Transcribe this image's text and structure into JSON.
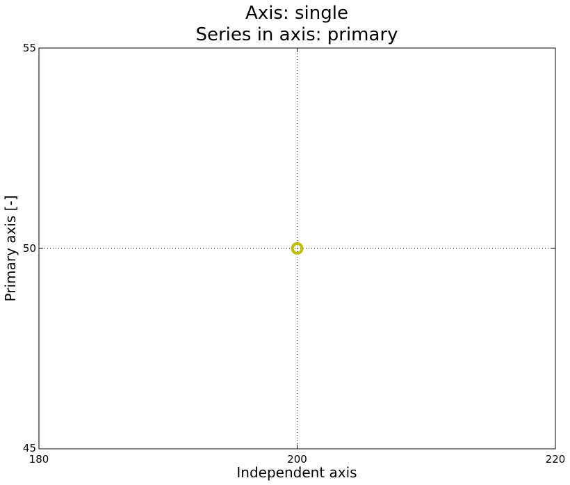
{
  "chart_data": {
    "type": "scatter",
    "title": [
      "Axis: single",
      "Series in axis: primary"
    ],
    "xlabel": "Independent axis",
    "ylabel": "Primary axis [-]",
    "xlim": [
      180,
      220
    ],
    "ylim": [
      45,
      55
    ],
    "xticks": [
      180,
      200,
      220
    ],
    "yticks": [
      45,
      50,
      55
    ],
    "grid": true,
    "series": [
      {
        "points": [
          {
            "x": 200,
            "y": 50
          }
        ],
        "color": "#bfbf00",
        "marker": "circle-hollow"
      }
    ]
  }
}
